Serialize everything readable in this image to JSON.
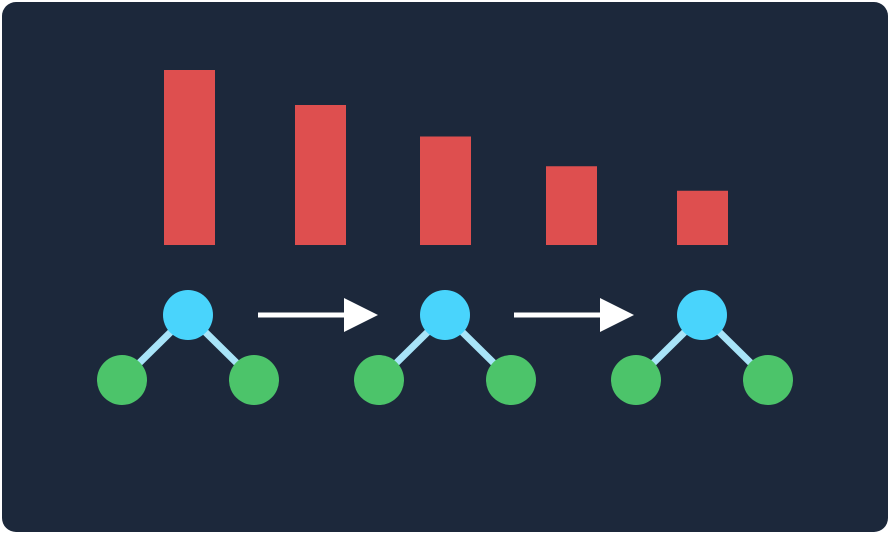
{
  "colors": {
    "background": "#1c283b",
    "bar": "#de4f4f",
    "root_node": "#49d4fc",
    "leaf_node": "#4cc46a",
    "edge": "#a8e4f8",
    "arrow": "#ffffff"
  },
  "bars": {
    "values": [
      100,
      80,
      62,
      45,
      31
    ]
  },
  "trees": [
    {
      "id": "tree-1",
      "nodes": [
        "root",
        "left-leaf",
        "right-leaf"
      ]
    },
    {
      "id": "tree-2",
      "nodes": [
        "root",
        "left-leaf",
        "right-leaf"
      ]
    },
    {
      "id": "tree-3",
      "nodes": [
        "root",
        "left-leaf",
        "right-leaf"
      ]
    }
  ],
  "arrows": [
    {
      "from": "tree-1",
      "to": "tree-2"
    },
    {
      "from": "tree-2",
      "to": "tree-3"
    }
  ]
}
